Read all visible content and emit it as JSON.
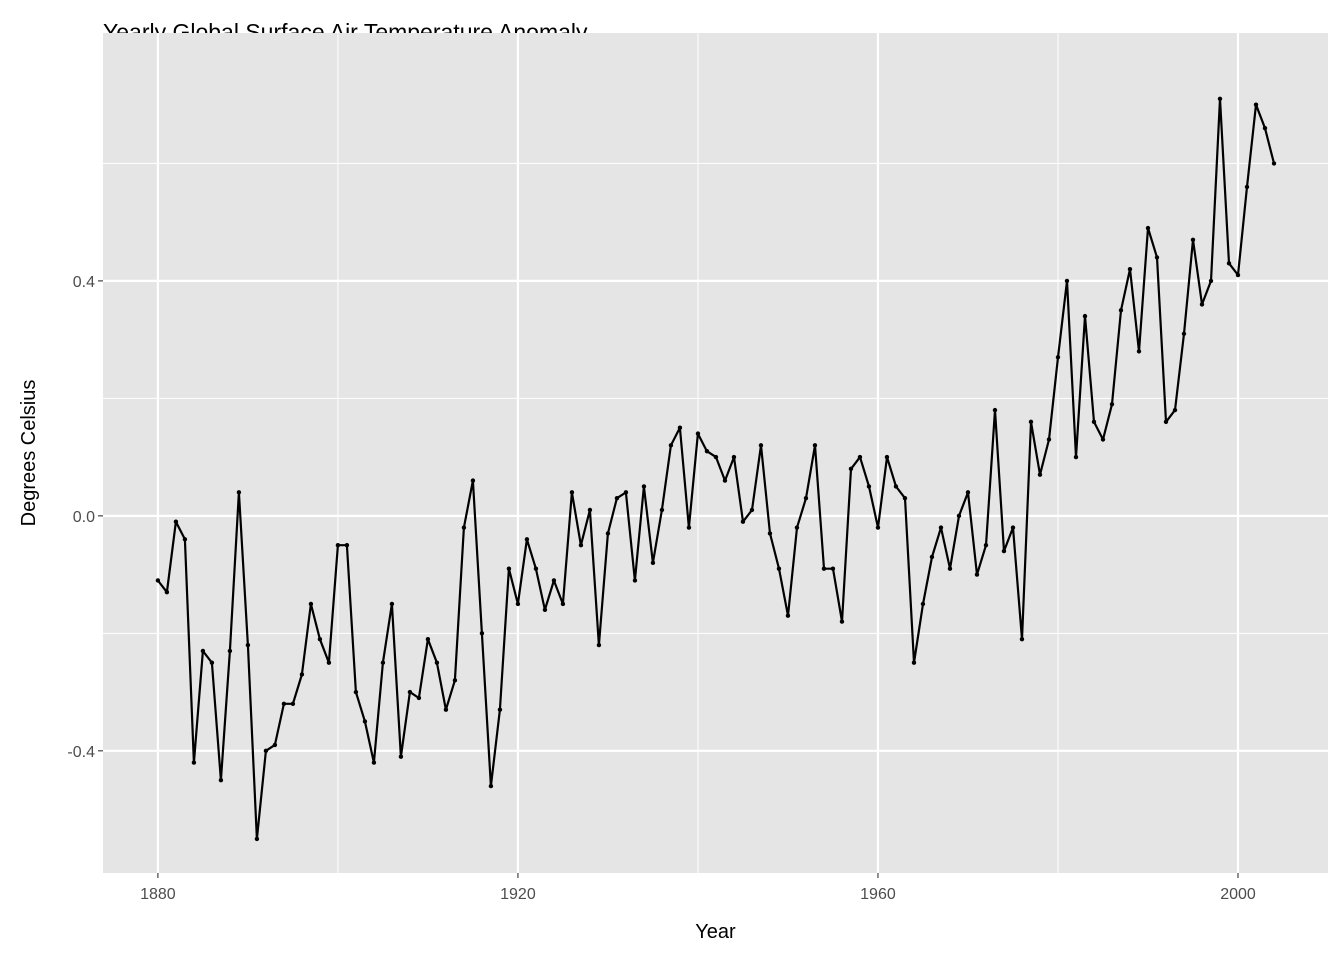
{
  "chart_data": {
    "type": "line",
    "title": "Yearly Global Surface Air Temperature Anomaly",
    "xlabel": "Year",
    "ylabel": "Degrees Celsius",
    "xlim": [
      1873.9,
      2010
    ],
    "ylim": [
      -0.608,
      0.822
    ],
    "x_ticks": [
      1880,
      1920,
      1960,
      2000
    ],
    "x_tick_labels": [
      "1880",
      "1920",
      "1960",
      "2000"
    ],
    "y_ticks": [
      -0.4,
      0.0,
      0.4
    ],
    "y_tick_labels": [
      "-0.4",
      "0.0",
      "0.4"
    ],
    "x_minor_ticks": [
      1900,
      1940,
      1980
    ],
    "y_minor_ticks": [
      -0.2,
      0.2,
      0.6
    ],
    "grid": true,
    "markers": true,
    "colors": {
      "line": "#000000",
      "panel": "#e5e5e5",
      "grid": "#ffffff"
    },
    "x": [
      1880,
      1881,
      1882,
      1883,
      1884,
      1885,
      1886,
      1887,
      1888,
      1889,
      1890,
      1891,
      1892,
      1893,
      1894,
      1895,
      1896,
      1897,
      1898,
      1899,
      1900,
      1901,
      1902,
      1903,
      1904,
      1905,
      1906,
      1907,
      1908,
      1909,
      1910,
      1911,
      1912,
      1913,
      1914,
      1915,
      1916,
      1917,
      1918,
      1919,
      1920,
      1921,
      1922,
      1923,
      1924,
      1925,
      1926,
      1927,
      1928,
      1929,
      1930,
      1931,
      1932,
      1933,
      1934,
      1935,
      1936,
      1937,
      1938,
      1939,
      1940,
      1941,
      1942,
      1943,
      1944,
      1945,
      1946,
      1947,
      1948,
      1949,
      1950,
      1951,
      1952,
      1953,
      1954,
      1955,
      1956,
      1957,
      1958,
      1959,
      1960,
      1961,
      1962,
      1963,
      1964,
      1965,
      1966,
      1967,
      1968,
      1969,
      1970,
      1971,
      1972,
      1973,
      1974,
      1975,
      1976,
      1977,
      1978,
      1979,
      1980,
      1981,
      1982,
      1983,
      1984,
      1985,
      1986,
      1987,
      1988,
      1989,
      1990,
      1991,
      1992,
      1993,
      1994,
      1995,
      1996,
      1997,
      1998,
      1999,
      2000,
      2001,
      2002,
      2003,
      2004
    ],
    "y": [
      -0.11,
      -0.13,
      -0.01,
      -0.04,
      -0.42,
      -0.23,
      -0.25,
      -0.45,
      -0.23,
      0.04,
      -0.22,
      -0.55,
      -0.4,
      -0.39,
      -0.32,
      -0.32,
      -0.27,
      -0.15,
      -0.21,
      -0.25,
      -0.05,
      -0.05,
      -0.3,
      -0.35,
      -0.42,
      -0.25,
      -0.15,
      -0.41,
      -0.3,
      -0.31,
      -0.21,
      -0.25,
      -0.33,
      -0.28,
      -0.02,
      0.06,
      -0.2,
      -0.46,
      -0.33,
      -0.09,
      -0.15,
      -0.04,
      -0.09,
      -0.16,
      -0.11,
      -0.15,
      0.04,
      -0.05,
      0.01,
      -0.22,
      -0.03,
      0.03,
      0.04,
      -0.11,
      0.05,
      -0.08,
      0.01,
      0.12,
      0.15,
      -0.02,
      0.14,
      0.11,
      0.1,
      0.06,
      0.1,
      -0.01,
      0.01,
      0.12,
      -0.03,
      -0.09,
      -0.17,
      -0.02,
      0.03,
      0.12,
      -0.09,
      -0.09,
      -0.18,
      0.08,
      0.1,
      0.05,
      -0.02,
      0.1,
      0.05,
      0.03,
      -0.25,
      -0.15,
      -0.07,
      -0.02,
      -0.09,
      0.0,
      0.04,
      -0.1,
      -0.05,
      0.18,
      -0.06,
      -0.02,
      -0.21,
      0.16,
      0.07,
      0.13,
      0.27,
      0.4,
      0.1,
      0.34,
      0.16,
      0.13,
      0.19,
      0.35,
      0.42,
      0.28,
      0.49,
      0.44,
      0.16,
      0.18,
      0.31,
      0.47,
      0.36,
      0.4,
      0.71,
      0.43,
      0.41,
      0.56,
      0.7,
      0.66,
      0.6
    ]
  }
}
